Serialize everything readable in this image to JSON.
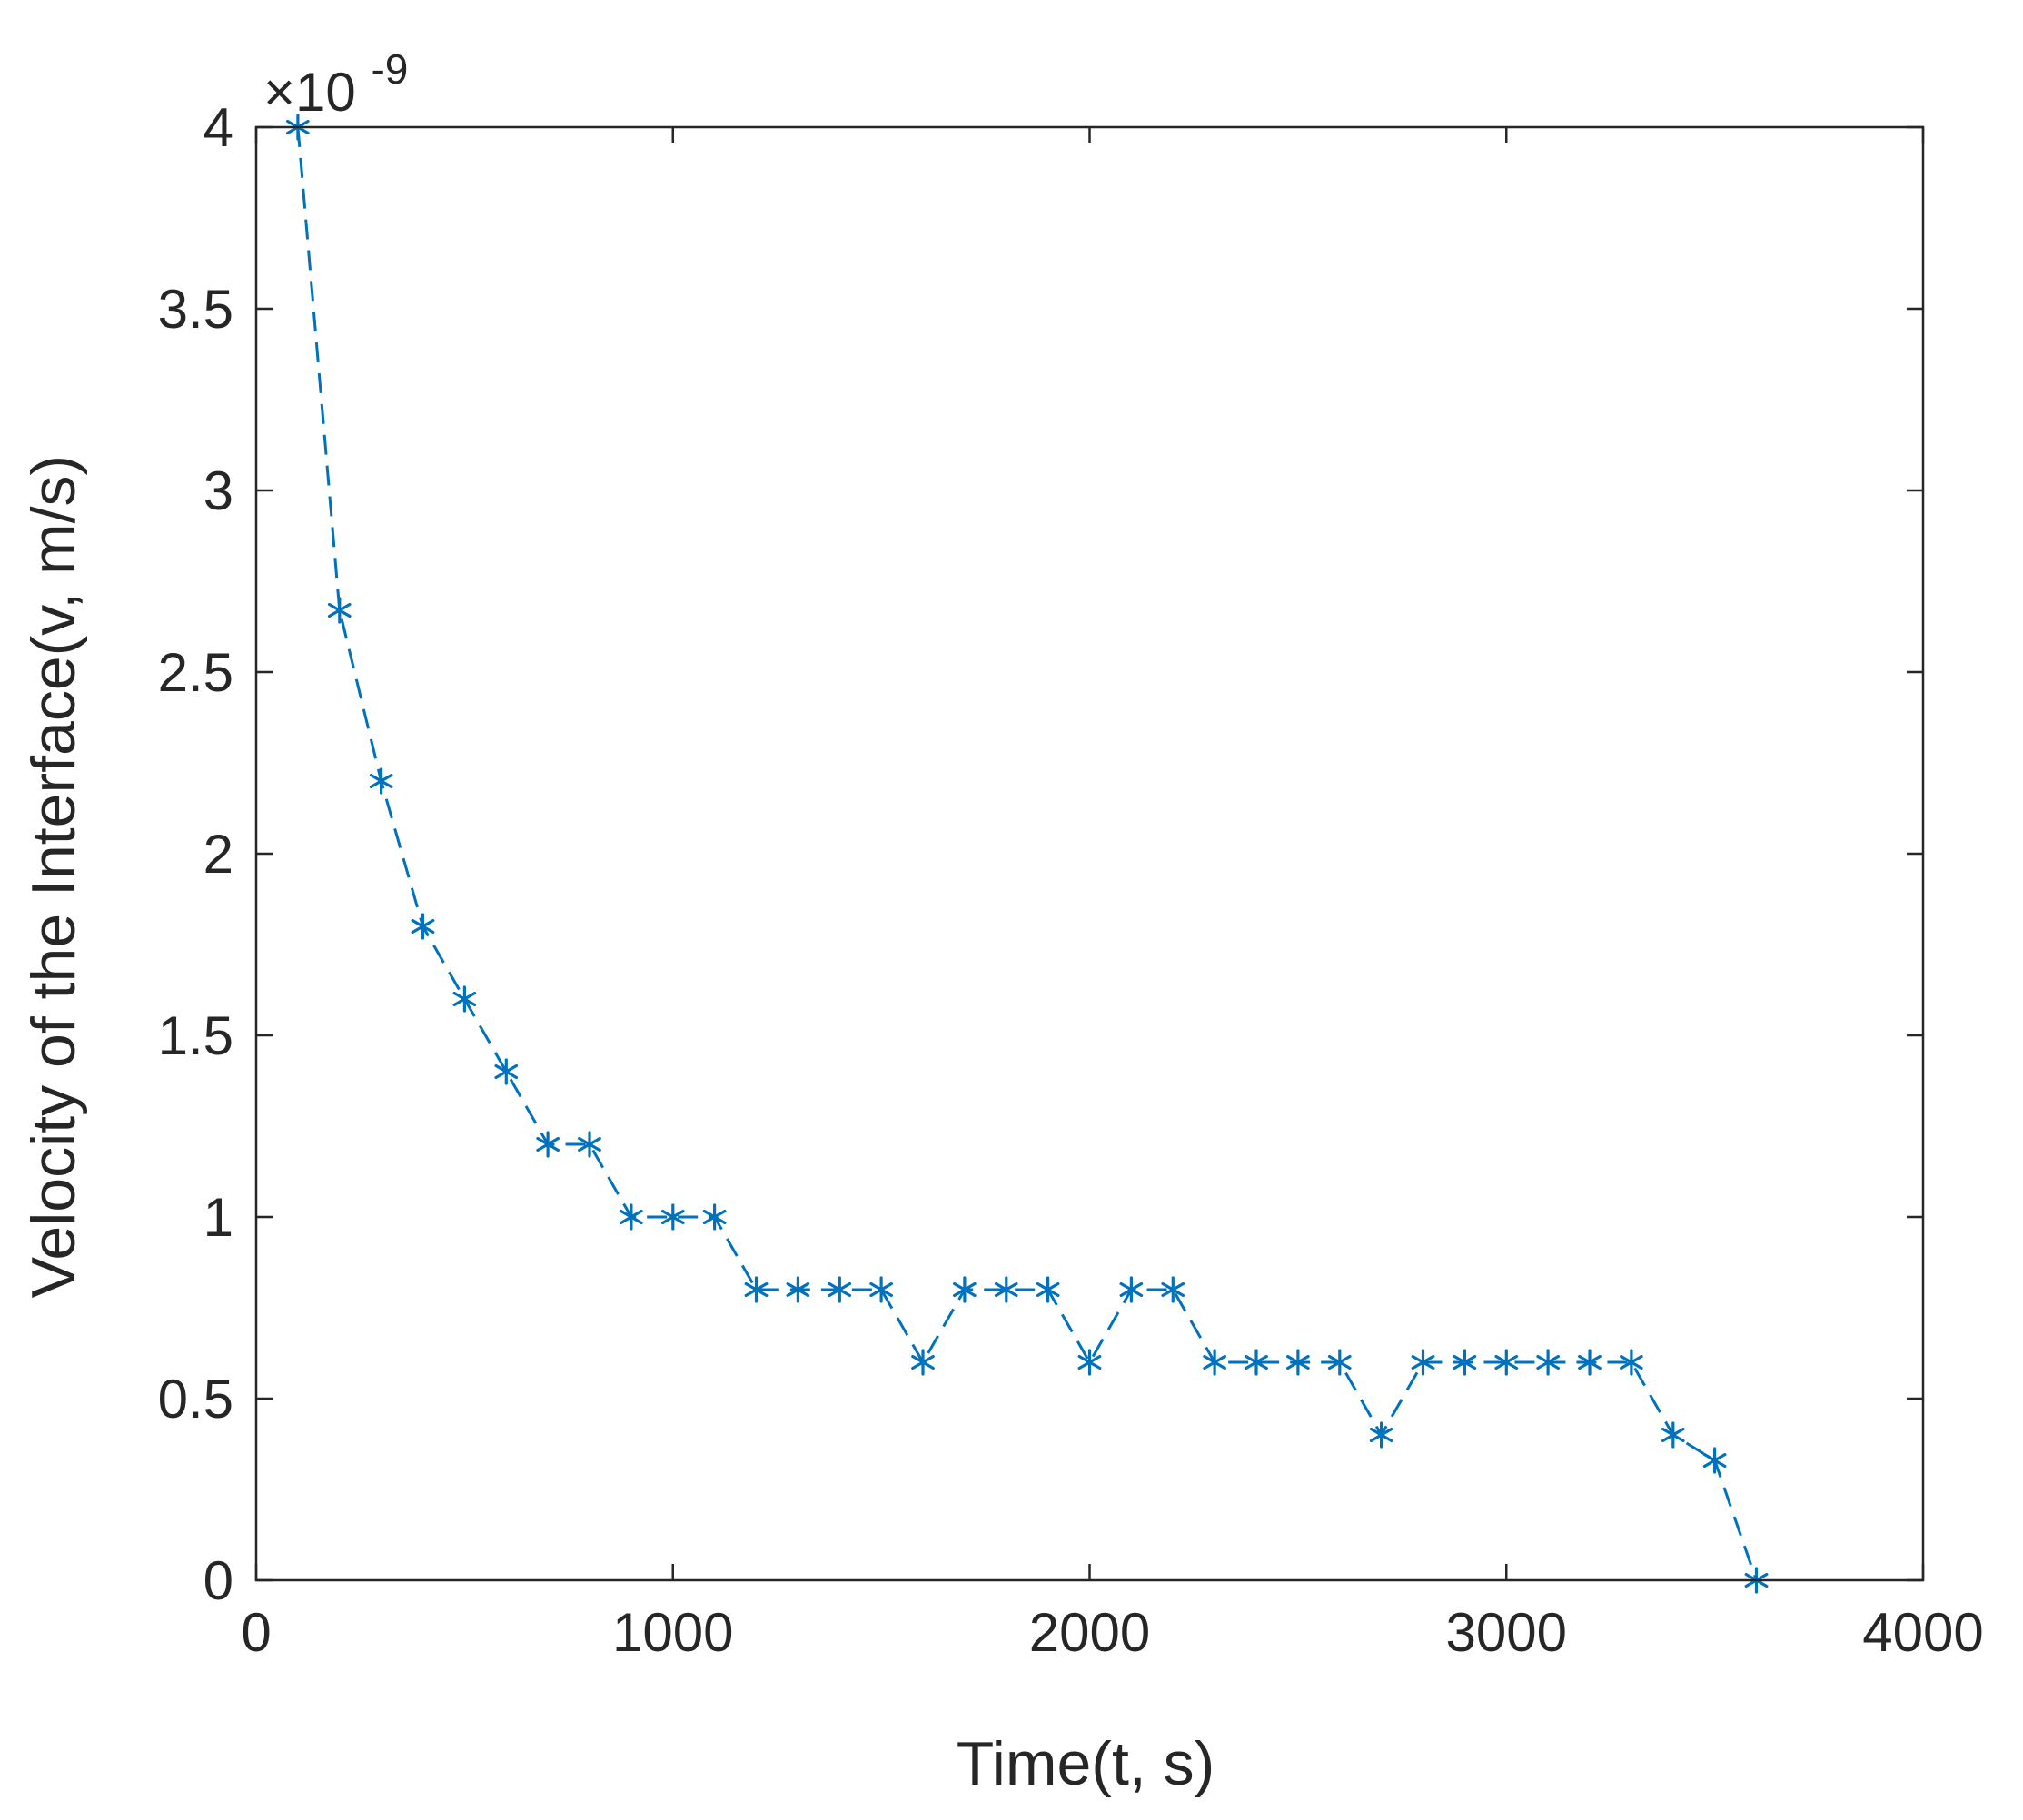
{
  "chart_data": {
    "type": "line",
    "title": "",
    "xlabel": "Time(t, s)",
    "ylabel": "Velocity of the Interface(v, m/s)",
    "xlim": [
      0,
      4000
    ],
    "ylim": [
      0,
      4e-09
    ],
    "x_ticks": [
      0,
      1000,
      2000,
      3000,
      4000
    ],
    "x_tick_labels": [
      "0",
      "1000",
      "2000",
      "3000",
      "4000"
    ],
    "y_ticks": [
      0,
      5e-10,
      1e-09,
      1.5e-09,
      2e-09,
      2.5e-09,
      3e-09,
      3.5e-09,
      4e-09
    ],
    "y_tick_labels": [
      "0",
      "0.5",
      "1",
      "1.5",
      "2",
      "2.5",
      "3",
      "3.5",
      "4"
    ],
    "y_exponent_label": "×10",
    "y_exponent_power": "-9",
    "grid": false,
    "line_style": "dashed",
    "marker": "asterisk",
    "color": "#0072BD",
    "series": [
      {
        "x": [
          100,
          200,
          300,
          400,
          500,
          600,
          700,
          800,
          900,
          1000,
          1100,
          1200,
          1300,
          1400,
          1500,
          1600,
          1700,
          1800,
          1900,
          2000,
          2100,
          2200,
          2300,
          2400,
          2500,
          2600,
          2700,
          2800,
          2900,
          3000,
          3100,
          3200,
          3300,
          3400,
          3500,
          3600
        ],
        "y": [
          4e-09,
          2.67e-09,
          2.2e-09,
          1.8e-09,
          1.6e-09,
          1.4e-09,
          1.2e-09,
          1.2e-09,
          1e-09,
          1e-09,
          1e-09,
          8e-10,
          8e-10,
          8e-10,
          8e-10,
          6e-10,
          8e-10,
          8e-10,
          8e-10,
          6e-10,
          8e-10,
          8e-10,
          6e-10,
          6e-10,
          6e-10,
          6e-10,
          4e-10,
          6e-10,
          6e-10,
          6e-10,
          6e-10,
          6e-10,
          6e-10,
          4e-10,
          3.3e-10,
          0.0
        ]
      }
    ]
  }
}
